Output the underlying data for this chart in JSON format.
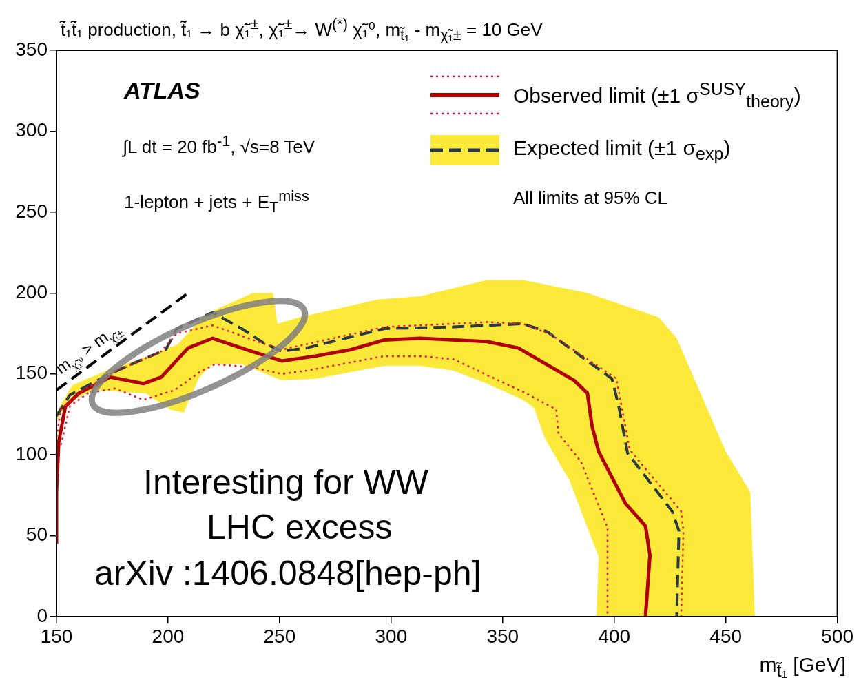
{
  "chart_data": {
    "type": "line",
    "title": "t̃₁t̃₁ production, t̃₁ → b χ̃₁$^{±}$, χ̃₁$^{±}$→ W$^{(*)}$ χ̃₁⁰, m$_{t̃₁}$ - m$_{χ̃₁±}$ = 10 GeV",
    "xlabel": "m$_{t̃₁}$ [GeV]",
    "xlim": [
      150,
      500
    ],
    "xticks": [
      150,
      200,
      250,
      300,
      350,
      400,
      450,
      500
    ],
    "ylim": [
      0,
      350
    ],
    "yticks": [
      0,
      50,
      100,
      150,
      200,
      250,
      300,
      350
    ],
    "grid": false,
    "legend": "top right",
    "marker": "none",
    "annotations": [
      "ATLAS",
      "∫L dt = 20 fb$^{-1}$, √s=8 TeV",
      "1-lepton + jets + E$_{T}$$^{miss}$",
      "All limits at 95% CL",
      "Interesting for WW",
      "LHC excess",
      "arXiv :1406.0848[hep-ph]",
      {
        "text": "m$_{χ̃₁⁰}$ > m$_{χ̃₁±}$",
        "x": 172,
        "y": 162
      }
    ],
    "series": [
      {
        "type": "area",
        "color": "#fde93a",
        "x": [
          150,
          157,
          174,
          189,
          204,
          217,
          238,
          247,
          249,
          259,
          294,
          313,
          343,
          359,
          388,
          420,
          428,
          450,
          461,
          463,
          392,
          393,
          388,
          380,
          369,
          364,
          359,
          343,
          328,
          313,
          297,
          266,
          251,
          233,
          220,
          214,
          207,
          201,
          190,
          167,
          159,
          152,
          150
        ],
        "values": [
          126,
          143,
          153,
          160,
          168,
          187,
          200,
          200,
          181,
          185,
          196,
          198,
          208,
          208,
          200,
          185,
          172,
          102,
          77,
          0,
          0,
          37,
          55,
          84,
          110,
          129,
          134,
          144,
          152,
          155,
          155,
          147,
          146,
          156,
          156,
          148,
          126,
          128,
          138,
          140,
          135,
          126,
          118
        ]
      },
      {
        "color": "#000000",
        "line_style": "dashed",
        "x": [
          150,
          209
        ],
        "values": [
          140,
          200
        ]
      },
      {
        "color": "#e8173c",
        "line_style": "dotted",
        "x": [
          150,
          152,
          162,
          174,
          197,
          204,
          220,
          238,
          251,
          297,
          343,
          359,
          372,
          401,
          403,
          407,
          430,
          431,
          430
        ],
        "values": [
          111,
          128,
          140,
          150,
          164,
          175,
          180,
          171,
          165,
          179,
          182,
          181,
          174,
          147,
          132,
          103,
          65,
          53,
          0
        ]
      },
      {
        "color": "#e8173c",
        "line_style": "dotted",
        "x": [
          152,
          156,
          164,
          176,
          189,
          203,
          214,
          221,
          238,
          251,
          262,
          297,
          313,
          328,
          359,
          374,
          375,
          385,
          397,
          397
        ],
        "values": [
          106,
          130,
          138,
          141,
          134,
          140,
          151,
          156,
          154,
          150,
          152,
          161,
          161,
          159,
          139,
          128,
          113,
          96,
          55,
          0
        ]
      },
      {
        "name": "Expected limit (±1 σ$_{exp}$)",
        "color": "#2b3a40",
        "line_style": "dashed",
        "x": [
          150,
          156,
          174,
          187,
          199,
          204,
          220,
          233,
          243,
          251,
          262,
          297,
          328,
          359,
          370,
          387,
          399,
          402,
          406,
          426,
          429,
          428
        ],
        "values": [
          124,
          137,
          150,
          158,
          165,
          178,
          188,
          178,
          169,
          164,
          166,
          178,
          179,
          181,
          176,
          159,
          147,
          130,
          101,
          65,
          53,
          0
        ]
      },
      {
        "name": "Observed limit (±1 σ$^{SUSY}$$_{theory}$)",
        "color": "#b00000",
        "line_style": "solid",
        "x": [
          150,
          150,
          151,
          154,
          160,
          174,
          189,
          197,
          209,
          220,
          235,
          251,
          266,
          282,
          297,
          313,
          343,
          357,
          382,
          388,
          390,
          393,
          405,
          414,
          416,
          414
        ],
        "values": [
          45,
          77,
          108,
          130,
          138,
          148,
          144,
          148,
          166,
          172,
          165,
          158,
          161,
          165,
          171,
          172,
          170,
          166,
          146,
          138,
          118,
          102,
          70,
          56,
          38,
          0
        ]
      }
    ]
  }
}
